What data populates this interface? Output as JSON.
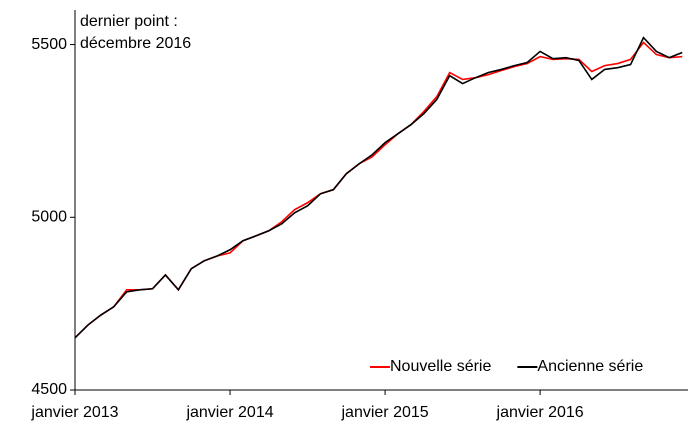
{
  "chart_data": {
    "type": "line",
    "annotation": [
      "dernier point :",
      "décembre 2016"
    ],
    "categories": [
      "janvier 2013",
      null,
      null,
      null,
      null,
      null,
      null,
      null,
      null,
      null,
      null,
      null,
      "janvier 2014",
      null,
      null,
      null,
      null,
      null,
      null,
      null,
      null,
      null,
      null,
      null,
      "janvier 2015",
      null,
      null,
      null,
      null,
      null,
      null,
      null,
      null,
      null,
      null,
      null,
      "janvier 2016",
      null,
      null,
      null,
      null,
      null,
      null,
      null,
      null,
      null,
      null,
      null
    ],
    "series": [
      {
        "name": "Nouvelle série",
        "color": "#ff0000",
        "values": [
          4651,
          4688,
          4717,
          4741,
          4790,
          4790,
          4793,
          4833,
          4790,
          4851,
          4874,
          4888,
          4897,
          4932,
          4946,
          4961,
          4987,
          5022,
          5042,
          5068,
          5080,
          5126,
          5155,
          5175,
          5210,
          5242,
          5268,
          5306,
          5349,
          5419,
          5399,
          5404,
          5413,
          5425,
          5436,
          5445,
          5465,
          5457,
          5459,
          5457,
          5422,
          5439,
          5445,
          5457,
          5506,
          5471,
          5462,
          5465
        ]
      },
      {
        "name": "Ancienne série",
        "color": "#000000",
        "values": [
          4651,
          4688,
          4717,
          4741,
          4784,
          4790,
          4793,
          4833,
          4790,
          4851,
          4874,
          4888,
          4906,
          4932,
          4946,
          4961,
          4981,
          5013,
          5033,
          5068,
          5080,
          5126,
          5155,
          5181,
          5216,
          5242,
          5268,
          5300,
          5341,
          5410,
          5387,
          5404,
          5419,
          5428,
          5439,
          5448,
          5480,
          5459,
          5462,
          5454,
          5399,
          5428,
          5433,
          5442,
          5520,
          5480,
          5462,
          5477
        ]
      }
    ],
    "ylim": [
      4500,
      5600
    ],
    "yticks": [
      4500,
      5000,
      5500
    ],
    "grid": false,
    "legend": "bottom-right"
  }
}
